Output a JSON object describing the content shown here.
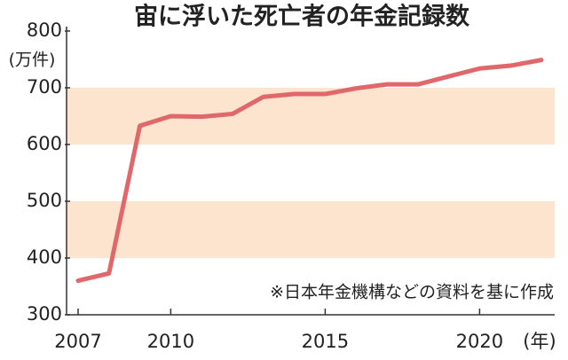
{
  "chart_data": {
    "type": "line",
    "title": "宙に浮いた死亡者の年金記録数",
    "y_unit": "(万件)",
    "x_unit": "(年)",
    "note": "※日本年金機構などの資料を基に作成",
    "x": [
      2007,
      2008,
      2009,
      2010,
      2011,
      2012,
      2013,
      2014,
      2015,
      2016,
      2017,
      2018,
      2019,
      2020,
      2021,
      2022
    ],
    "values": [
      360,
      373,
      633,
      650,
      649,
      654,
      684,
      689,
      689,
      699,
      706,
      706,
      720,
      734,
      739,
      749
    ],
    "color": "#e0676a",
    "xlim": [
      2007,
      2022
    ],
    "xticks": [
      2007,
      2010,
      2015,
      2020
    ],
    "ylim": [
      300,
      800
    ],
    "yticks": [
      300,
      400,
      500,
      600,
      700,
      800
    ],
    "bands": [
      [
        400,
        500
      ],
      [
        600,
        700
      ]
    ],
    "band_color": "#fce4cf"
  }
}
